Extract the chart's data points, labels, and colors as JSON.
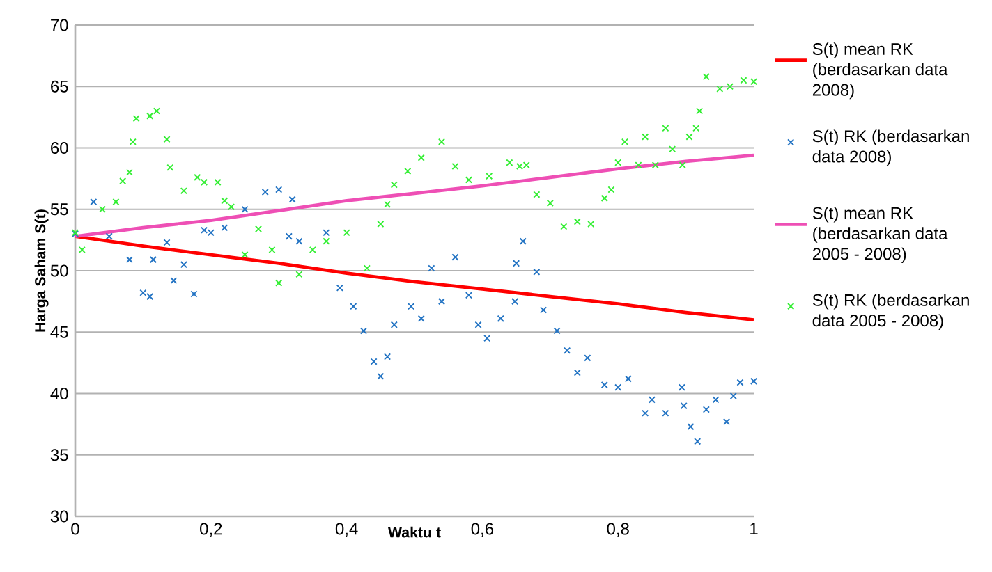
{
  "chart_data": {
    "type": "line",
    "xlabel": "Waktu t",
    "ylabel": "Harga Saham S(t)",
    "xlim": [
      0,
      1
    ],
    "ylim": [
      30,
      70
    ],
    "xticks": [
      {
        "value": 0,
        "label": "0"
      },
      {
        "value": 0.2,
        "label": "0,2"
      },
      {
        "value": 0.4,
        "label": "0,4"
      },
      {
        "value": 0.6,
        "label": "0,6"
      },
      {
        "value": 0.8,
        "label": "0,8"
      },
      {
        "value": 1,
        "label": "1"
      }
    ],
    "yticks": [
      30,
      35,
      40,
      45,
      50,
      55,
      60,
      65,
      70
    ],
    "grid": "y",
    "legend": "right",
    "series": [
      {
        "name": "S(t) mean RK (berdasarkan data 2008)",
        "color": "#ff0000",
        "marker": "none",
        "line_style": "solid",
        "x": [
          0,
          0.1,
          0.2,
          0.3,
          0.4,
          0.5,
          0.6,
          0.7,
          0.8,
          0.9,
          1
        ],
        "values": [
          52.8,
          52.0,
          51.3,
          50.6,
          49.8,
          49.1,
          48.5,
          47.9,
          47.3,
          46.6,
          46.0
        ]
      },
      {
        "name": "S(t) RK (berdasarkan data 2008)",
        "type": "scatter",
        "color": "#2273c3",
        "marker": "cross",
        "x": [
          0,
          0.027,
          0.05,
          0.08,
          0.1,
          0.11,
          0.115,
          0.135,
          0.145,
          0.16,
          0.175,
          0.19,
          0.2,
          0.22,
          0.25,
          0.28,
          0.3,
          0.315,
          0.32,
          0.33,
          0.37,
          0.39,
          0.41,
          0.425,
          0.44,
          0.45,
          0.46,
          0.47,
          0.495,
          0.51,
          0.525,
          0.54,
          0.56,
          0.58,
          0.594,
          0.607,
          0.627,
          0.648,
          0.65,
          0.66,
          0.68,
          0.69,
          0.71,
          0.725,
          0.74,
          0.755,
          0.78,
          0.8,
          0.815,
          0.84,
          0.85,
          0.87,
          0.894,
          0.897,
          0.907,
          0.917,
          0.93,
          0.944,
          0.96,
          0.97,
          0.98,
          1
        ],
        "values": [
          53.0,
          55.6,
          52.8,
          50.9,
          48.2,
          47.9,
          50.9,
          52.3,
          49.2,
          50.5,
          48.1,
          53.3,
          53.1,
          53.5,
          55.0,
          56.4,
          56.6,
          52.8,
          55.8,
          52.4,
          53.1,
          48.6,
          47.1,
          45.1,
          42.6,
          41.4,
          43.0,
          45.6,
          47.1,
          46.1,
          50.2,
          47.5,
          51.1,
          48.0,
          45.6,
          44.5,
          46.1,
          47.5,
          50.6,
          52.4,
          49.9,
          46.8,
          45.1,
          43.5,
          41.7,
          42.9,
          40.7,
          40.5,
          41.2,
          38.4,
          39.5,
          38.4,
          40.5,
          39.0,
          37.3,
          36.1,
          38.7,
          39.5,
          37.7,
          39.8,
          40.9,
          41.0
        ]
      },
      {
        "name": "S(t) mean RK (berdasarkan data 2005 - 2008)",
        "color": "#ee4fb5",
        "marker": "none",
        "line_style": "solid",
        "x": [
          0,
          0.1,
          0.2,
          0.3,
          0.4,
          0.5,
          0.6,
          0.7,
          0.8,
          0.9,
          1
        ],
        "values": [
          52.8,
          53.5,
          54.1,
          54.9,
          55.7,
          56.3,
          56.9,
          57.6,
          58.3,
          58.9,
          59.4
        ]
      },
      {
        "name": "S(t) RK (berdasarkan data 2005 - 2008)",
        "type": "scatter",
        "color": "#33ee33",
        "marker": "cross",
        "x": [
          0,
          0.01,
          0.04,
          0.06,
          0.07,
          0.08,
          0.085,
          0.09,
          0.11,
          0.12,
          0.135,
          0.14,
          0.16,
          0.18,
          0.19,
          0.21,
          0.22,
          0.23,
          0.25,
          0.27,
          0.29,
          0.3,
          0.33,
          0.35,
          0.37,
          0.4,
          0.43,
          0.45,
          0.46,
          0.47,
          0.49,
          0.51,
          0.54,
          0.56,
          0.58,
          0.61,
          0.64,
          0.655,
          0.665,
          0.68,
          0.7,
          0.72,
          0.74,
          0.76,
          0.78,
          0.79,
          0.8,
          0.81,
          0.83,
          0.84,
          0.855,
          0.87,
          0.88,
          0.895,
          0.905,
          0.915,
          0.92,
          0.93,
          0.95,
          0.965,
          0.985,
          1
        ],
        "values": [
          53.1,
          51.7,
          55.0,
          55.6,
          57.3,
          58.0,
          60.5,
          62.4,
          62.6,
          63.0,
          60.7,
          58.4,
          56.5,
          57.6,
          57.2,
          57.2,
          55.7,
          55.2,
          51.3,
          53.4,
          51.7,
          49.0,
          49.7,
          51.7,
          52.4,
          53.1,
          50.2,
          53.8,
          55.4,
          57.0,
          58.1,
          59.2,
          60.5,
          58.5,
          57.4,
          57.7,
          58.8,
          58.5,
          58.6,
          56.2,
          55.5,
          53.6,
          54.0,
          53.8,
          55.9,
          56.6,
          58.8,
          60.5,
          58.6,
          60.9,
          58.6,
          61.6,
          59.9,
          58.6,
          60.9,
          61.6,
          63.0,
          65.8,
          64.8,
          65.0,
          65.5,
          65.4
        ]
      }
    ]
  }
}
